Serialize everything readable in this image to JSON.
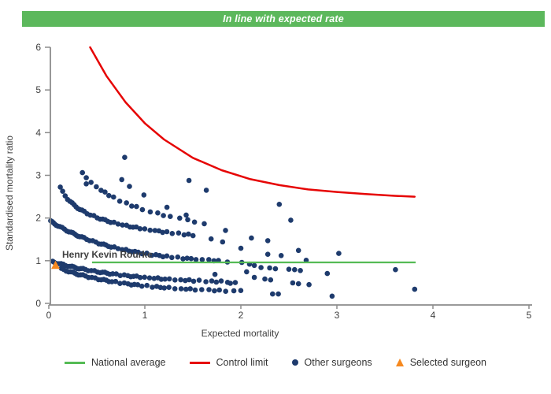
{
  "banner": {
    "text": "In line with expected rate",
    "color": "#5cb85c"
  },
  "chart_data": {
    "type": "scatter",
    "title": "In line with expected rate",
    "xlabel": "Expected mortality",
    "ylabel": "Standardised mortality ratio",
    "xlim": [
      0,
      5
    ],
    "ylim": [
      0,
      6
    ],
    "x_ticks": [
      0,
      1,
      2,
      3,
      4,
      5
    ],
    "y_ticks": [
      0,
      1,
      2,
      3,
      4,
      5,
      6
    ],
    "grid": false,
    "legend_position": "bottom",
    "national_average": {
      "y": 0.96,
      "x_start": 0.45,
      "x_end": 3.82,
      "color": "#55bb55"
    },
    "control_limit": {
      "color": "#e60505",
      "points": [
        [
          0.43,
          6.0
        ],
        [
          0.6,
          5.33
        ],
        [
          0.8,
          4.71
        ],
        [
          1.0,
          4.22
        ],
        [
          1.2,
          3.84
        ],
        [
          1.5,
          3.41
        ],
        [
          1.8,
          3.12
        ],
        [
          2.1,
          2.91
        ],
        [
          2.4,
          2.77
        ],
        [
          2.7,
          2.67
        ],
        [
          3.0,
          2.61
        ],
        [
          3.3,
          2.56
        ],
        [
          3.6,
          2.52
        ],
        [
          3.81,
          2.5
        ]
      ]
    },
    "selected_surgeon": {
      "name": "Henry Kevin Rourke",
      "x": 0.07,
      "y": 0.9,
      "color": "#f6891f"
    },
    "other_surgeons": {
      "color": "#1e3b6d",
      "dot_radius": 3.3,
      "bands": [
        {
          "kind": "pow",
          "k": 2.19,
          "p": 0.315,
          "x0": 0.35,
          "x1": 1.72,
          "s": 0.02
        },
        {
          "kind": "pow",
          "k": 1.74,
          "p": 0.21,
          "x0": 0.12,
          "x1": 1.52,
          "s": 0.013
        },
        {
          "kind": "exp",
          "c": 0.92,
          "b": 1.03,
          "t": 0.7,
          "x0": 0.02,
          "x1": 1.78,
          "s": 0.012
        },
        {
          "kind": "exp",
          "c": 0.45,
          "b": 0.55,
          "t": 0.8,
          "x0": 0.04,
          "x1": 1.95,
          "s": 0.012
        },
        {
          "kind": "exp",
          "c": 0.25,
          "b": 0.67,
          "t": 0.7,
          "x0": 0.13,
          "x1": 2.05,
          "s": 0.013
        }
      ],
      "points": [
        [
          0.79,
          3.42
        ],
        [
          0.39,
          2.8
        ],
        [
          0.76,
          2.9
        ],
        [
          0.84,
          2.74
        ],
        [
          0.99,
          2.54
        ],
        [
          1.46,
          2.88
        ],
        [
          1.64,
          2.65
        ],
        [
          2.4,
          2.32
        ],
        [
          2.52,
          1.95
        ],
        [
          1.23,
          2.25
        ],
        [
          1.43,
          2.07
        ],
        [
          1.84,
          1.71
        ],
        [
          2.11,
          1.53
        ],
        [
          2.28,
          1.47
        ],
        [
          1.69,
          1.51
        ],
        [
          1.81,
          1.44
        ],
        [
          2.0,
          1.29
        ],
        [
          2.6,
          1.24
        ],
        [
          2.28,
          1.15
        ],
        [
          2.42,
          1.12
        ],
        [
          3.02,
          1.17
        ],
        [
          2.68,
          1.01
        ],
        [
          1.86,
          0.97
        ],
        [
          2.01,
          0.96
        ],
        [
          2.09,
          0.92
        ],
        [
          2.14,
          0.89
        ],
        [
          2.21,
          0.84
        ],
        [
          2.3,
          0.83
        ],
        [
          2.36,
          0.81
        ],
        [
          2.5,
          0.8
        ],
        [
          2.56,
          0.79
        ],
        [
          2.62,
          0.77
        ],
        [
          3.61,
          0.79
        ],
        [
          2.06,
          0.74
        ],
        [
          2.14,
          0.61
        ],
        [
          2.25,
          0.57
        ],
        [
          2.31,
          0.55
        ],
        [
          2.54,
          0.48
        ],
        [
          2.6,
          0.46
        ],
        [
          2.71,
          0.44
        ],
        [
          2.9,
          0.7
        ],
        [
          1.73,
          0.68
        ],
        [
          1.89,
          0.47
        ],
        [
          3.81,
          0.33
        ],
        [
          2.33,
          0.22
        ],
        [
          2.39,
          0.22
        ],
        [
          2.95,
          0.17
        ]
      ]
    }
  },
  "axes_style": {
    "axis_color": "#8c8c8c",
    "tick_label_color": "#404040",
    "label_color": "#333333"
  },
  "legend": {
    "items": [
      {
        "label": "National average",
        "marker": "line",
        "color": "#55bb55"
      },
      {
        "label": "Control limit",
        "marker": "line",
        "color": "#e60505"
      },
      {
        "label": "Other surgeons",
        "marker": "dot",
        "color": "#1e3b6d"
      },
      {
        "label": "Selected surgeon",
        "marker": "triangle",
        "color": "#f6891f"
      }
    ]
  }
}
